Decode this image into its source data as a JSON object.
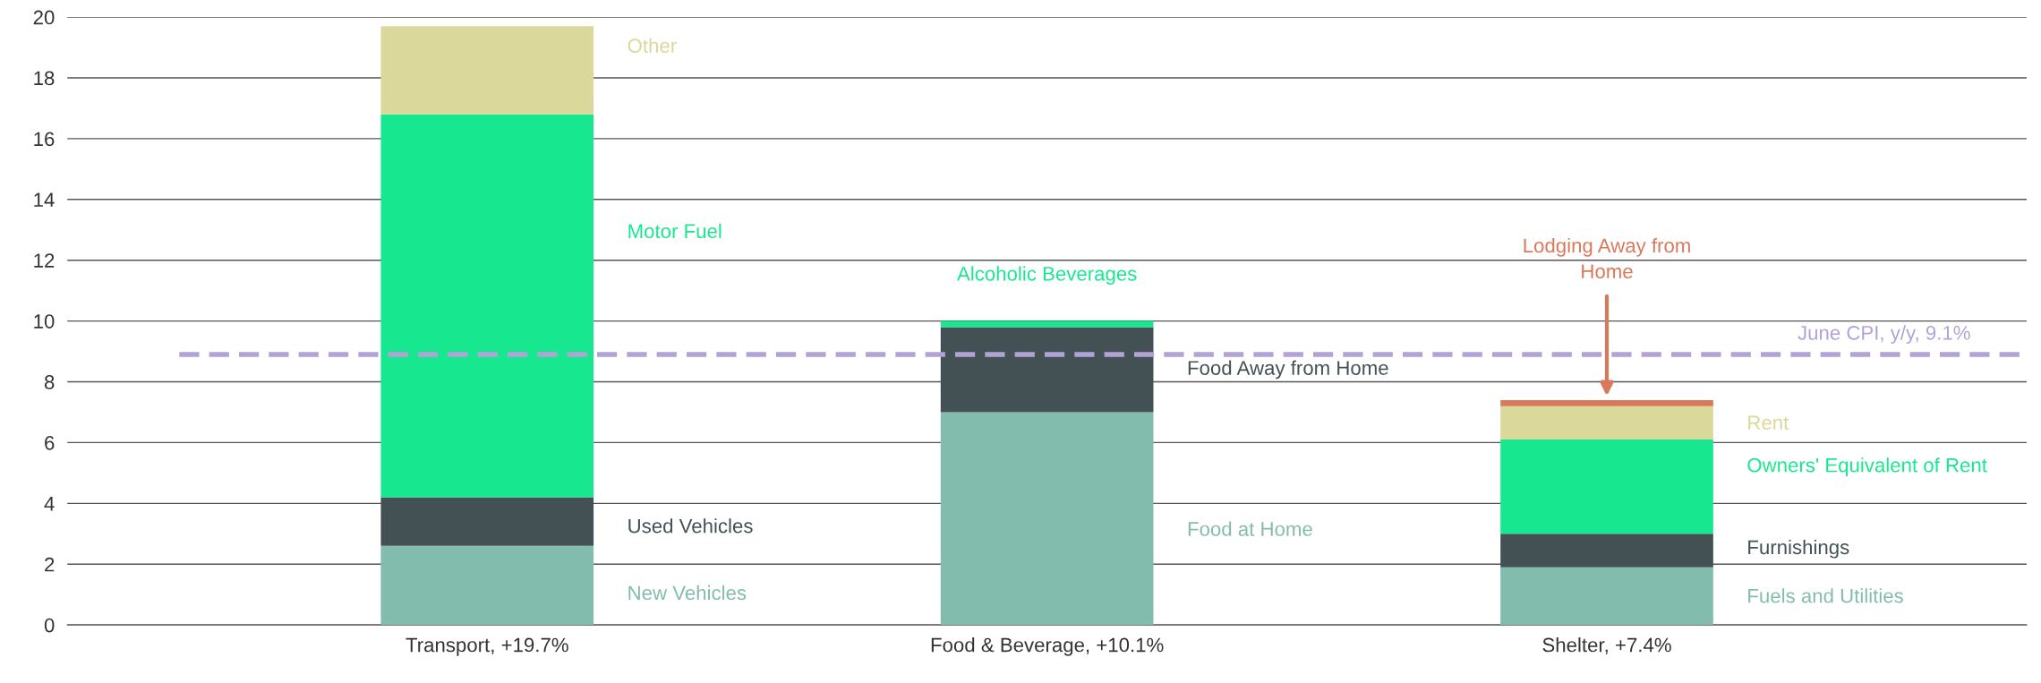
{
  "chart_data": {
    "type": "bar",
    "stacked": true,
    "categories": [
      "Transport, +19.7%",
      "Food & Beverage, +10.1%",
      "Shelter, +7.4%"
    ],
    "series": [
      {
        "color": "#82bcac",
        "values": [
          2.6,
          7.0,
          1.9
        ]
      },
      {
        "color": "#435054",
        "values": [
          1.6,
          2.8,
          1.1
        ]
      },
      {
        "color": "#17e88f",
        "values": [
          12.6,
          0.2,
          3.1
        ]
      },
      {
        "color": "#dbd89c",
        "values": [
          2.9,
          null,
          1.1
        ]
      },
      {
        "color": "#d9785a",
        "values": [
          null,
          null,
          0.2
        ]
      }
    ],
    "ylim": [
      0,
      20
    ],
    "yticks": [
      0,
      2,
      4,
      6,
      8,
      10,
      12,
      14,
      16,
      18,
      20
    ],
    "grid": "y",
    "ref_lines": [
      {
        "axis": "y",
        "value": 8.9,
        "label": "June CPI, y/y, 9.1%",
        "color": "#b3a2d6",
        "line_style": "dashed"
      }
    ],
    "annotations": [
      "Other",
      "Motor Fuel",
      "Used Vehicles",
      "New Vehicles",
      "Alcoholic Beverages",
      "Food Away from Home",
      "Food at Home",
      "Lodging Away from\nHome",
      "Rent",
      "Owners' Equivalent of Rent",
      "Furnishings",
      "Fuels and Utilities"
    ]
  }
}
